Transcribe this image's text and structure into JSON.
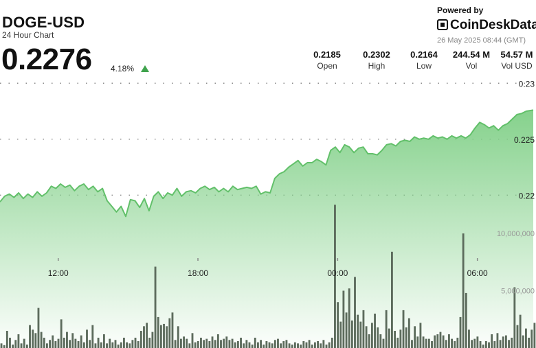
{
  "header": {
    "ticker": "DOGE-USD",
    "subtitle": "24 Hour Chart",
    "price": "0.2276",
    "change_pct": "4.18%",
    "change_direction": "up"
  },
  "branding": {
    "powered_by": "Powered by",
    "brand": "CoinDeskData",
    "timestamp": "26 May 2025 08:44 (GMT)"
  },
  "stats": [
    {
      "value": "0.2185",
      "label": "Open"
    },
    {
      "value": "0.2302",
      "label": "High"
    },
    {
      "value": "0.2164",
      "label": "Low"
    },
    {
      "value": "244.54 M",
      "label": "Vol"
    },
    {
      "value": "54.57 M",
      "label": "Vol USD"
    }
  ],
  "colors": {
    "line": "#62c06a",
    "area_top": "#7fcf86",
    "volume_bar": "#5c6b5c",
    "up_arrow": "#3fa34d"
  },
  "chart_data": {
    "type": "area",
    "title": "",
    "xlabel": "",
    "ylabel": "",
    "x_ticks": [
      "12:00",
      "18:00",
      "00:00",
      "06:00"
    ],
    "x_tick_positions": [
      1.0,
      7.0,
      13.0,
      19.0
    ],
    "x_range": [
      -1.5,
      21.4
    ],
    "y_ticks": [
      "0.23",
      "0.225",
      "0.22"
    ],
    "y_tick_values": [
      0.23,
      0.225,
      0.22
    ],
    "ylim": [
      0.2164,
      0.2302
    ],
    "grid": "horizontal-dotted",
    "price_series": {
      "name": "",
      "x": [
        -1.5,
        -1.3,
        -1.1,
        -0.9,
        -0.7,
        -0.5,
        -0.3,
        -0.1,
        0.1,
        0.3,
        0.5,
        0.7,
        0.9,
        1.1,
        1.3,
        1.5,
        1.7,
        1.9,
        2.1,
        2.3,
        2.5,
        2.7,
        2.9,
        3.1,
        3.3,
        3.5,
        3.7,
        3.9,
        4.1,
        4.3,
        4.5,
        4.7,
        4.9,
        5.1,
        5.3,
        5.5,
        5.7,
        5.9,
        6.1,
        6.3,
        6.5,
        6.7,
        6.9,
        7.1,
        7.3,
        7.5,
        7.7,
        7.9,
        8.1,
        8.3,
        8.5,
        8.7,
        8.9,
        9.1,
        9.3,
        9.5,
        9.7,
        9.9,
        10.1,
        10.3,
        10.5,
        10.7,
        10.9,
        11.1,
        11.3,
        11.5,
        11.7,
        11.9,
        12.1,
        12.3,
        12.5,
        12.7,
        12.9,
        13.1,
        13.3,
        13.5,
        13.7,
        13.9,
        14.1,
        14.3,
        14.5,
        14.7,
        14.9,
        15.1,
        15.3,
        15.5,
        15.7,
        15.9,
        16.1,
        16.3,
        16.5,
        16.7,
        16.9,
        17.1,
        17.3,
        17.5,
        17.7,
        17.9,
        18.1,
        18.3,
        18.5,
        18.7,
        18.9,
        19.1,
        19.3,
        19.5,
        19.7,
        19.9,
        20.1,
        20.3,
        20.5,
        20.7,
        20.9,
        21.1,
        21.4
      ],
      "values": [
        0.2194,
        0.2199,
        0.2201,
        0.2198,
        0.2202,
        0.2197,
        0.2201,
        0.2198,
        0.2203,
        0.2199,
        0.2202,
        0.2208,
        0.2206,
        0.221,
        0.2207,
        0.2209,
        0.2204,
        0.2208,
        0.221,
        0.2205,
        0.2208,
        0.2203,
        0.2206,
        0.2195,
        0.219,
        0.2185,
        0.219,
        0.2181,
        0.2196,
        0.2195,
        0.2189,
        0.2197,
        0.2186,
        0.2199,
        0.2203,
        0.2197,
        0.2202,
        0.22,
        0.2206,
        0.2199,
        0.2203,
        0.2204,
        0.2202,
        0.2206,
        0.2208,
        0.2205,
        0.2207,
        0.2203,
        0.2206,
        0.2203,
        0.2208,
        0.2205,
        0.2206,
        0.2207,
        0.2206,
        0.2208,
        0.2201,
        0.2203,
        0.2202,
        0.2215,
        0.2219,
        0.2221,
        0.2225,
        0.2228,
        0.2231,
        0.2226,
        0.2229,
        0.2229,
        0.2232,
        0.223,
        0.2227,
        0.224,
        0.2243,
        0.2238,
        0.2245,
        0.2243,
        0.2238,
        0.2242,
        0.2243,
        0.2237,
        0.2237,
        0.2236,
        0.224,
        0.2245,
        0.2246,
        0.2244,
        0.2248,
        0.2249,
        0.2248,
        0.2252,
        0.225,
        0.2251,
        0.225,
        0.2253,
        0.2251,
        0.2252,
        0.225,
        0.2253,
        0.2251,
        0.2253,
        0.2251,
        0.2254,
        0.226,
        0.2265,
        0.2263,
        0.226,
        0.2262,
        0.2258,
        0.2262,
        0.2264,
        0.2268,
        0.2272,
        0.2273,
        0.2275,
        0.2276
      ]
    },
    "volume_series": {
      "name": "",
      "y_ticks": [
        "10,000,000",
        "5,000,000"
      ],
      "y_tick_values": [
        10000000,
        5000000
      ],
      "ylim": [
        0,
        13000000
      ],
      "values": [
        400000,
        250000,
        1500000,
        900000,
        300000,
        700000,
        1200000,
        400000,
        800000,
        300000,
        2000000,
        1600000,
        1300000,
        3500000,
        1400000,
        900000,
        400000,
        700000,
        1100000,
        600000,
        800000,
        2500000,
        900000,
        1400000,
        700000,
        1300000,
        800000,
        600000,
        1100000,
        500000,
        1600000,
        700000,
        2000000,
        400000,
        900000,
        500000,
        1200000,
        400000,
        800000,
        500000,
        700000,
        300000,
        500000,
        900000,
        500000,
        400000,
        700000,
        900000,
        600000,
        1500000,
        1900000,
        2200000,
        900000,
        1400000,
        7100000,
        2700000,
        2000000,
        2100000,
        1900000,
        2600000,
        3100000,
        700000,
        1900000,
        800000,
        1000000,
        800000,
        400000,
        1300000,
        500000,
        600000,
        900000,
        700000,
        800000,
        600000,
        1000000,
        700000,
        1200000,
        700000,
        800000,
        1000000,
        700000,
        800000,
        500000,
        600000,
        900000,
        400000,
        700000,
        500000,
        300000,
        900000,
        500000,
        700000,
        300000,
        600000,
        500000,
        400000,
        700000,
        800000,
        400000,
        600000,
        700000,
        400000,
        300000,
        500000,
        400000,
        300000,
        600000,
        500000,
        700000,
        300000,
        500000,
        600000,
        400000,
        700000,
        300000,
        500000,
        900000,
        12500000,
        4000000,
        2300000,
        5000000,
        3100000,
        5200000,
        2400000,
        6200000,
        2900000,
        2300000,
        3300000,
        1900000,
        1200000,
        2200000,
        3000000,
        1800000,
        1200000,
        800000,
        3300000,
        1700000,
        8400000,
        1500000,
        900000,
        1600000,
        3300000,
        1800000,
        2600000,
        700000,
        1900000,
        1000000,
        2200000,
        1000000,
        800000,
        800000,
        600000,
        1100000,
        1200000,
        1400000,
        1100000,
        700000,
        1200000,
        800000,
        600000,
        900000,
        2700000,
        10000000,
        4800000,
        1600000,
        700000,
        800000,
        1000000,
        600000,
        300000,
        600000,
        500000,
        1200000,
        600000,
        1300000,
        700000,
        1000000,
        1100000,
        700000,
        900000,
        5300000,
        2000000,
        2900000,
        1100000,
        1700000,
        900000,
        1600000,
        2200000
      ]
    }
  }
}
